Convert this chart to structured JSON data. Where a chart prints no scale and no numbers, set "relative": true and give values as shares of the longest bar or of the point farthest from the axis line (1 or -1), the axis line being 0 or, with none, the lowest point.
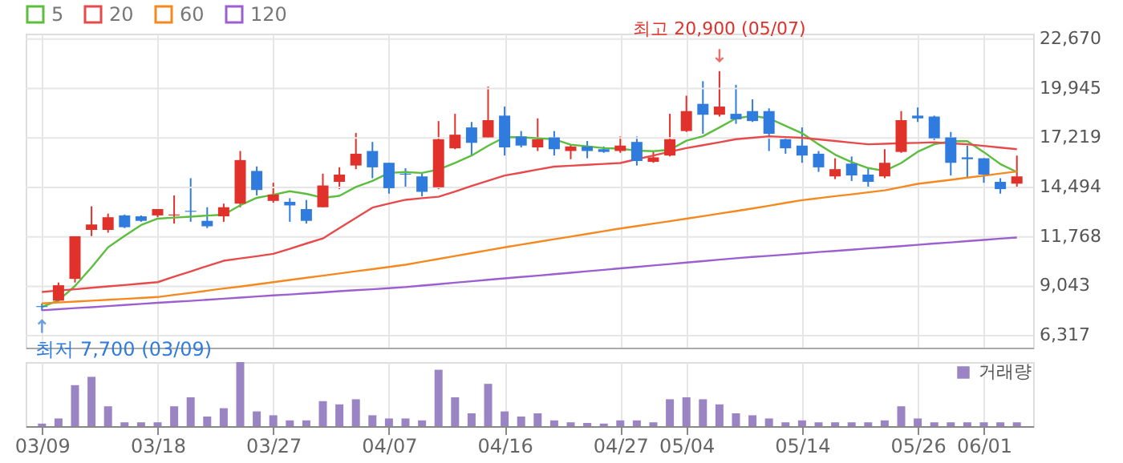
{
  "chart_data": [
    {
      "type": "candlestick",
      "categories": [
        "03/09",
        null,
        null,
        null,
        null,
        null,
        null,
        "03/18",
        null,
        null,
        null,
        null,
        null,
        null,
        "03/27",
        null,
        null,
        null,
        null,
        null,
        null,
        "04/07",
        null,
        null,
        null,
        null,
        null,
        null,
        "04/16",
        null,
        null,
        null,
        null,
        null,
        null,
        "04/27",
        null,
        null,
        null,
        "05/04",
        null,
        null,
        null,
        null,
        null,
        null,
        "05/14",
        null,
        null,
        null,
        null,
        null,
        null,
        "05/26",
        null,
        null,
        null,
        "06/01",
        null,
        null
      ],
      "ohlc": [
        [
          7950,
          8100,
          7700,
          7900
        ],
        [
          8250,
          9250,
          8200,
          9100
        ],
        [
          9450,
          11800,
          9250,
          11800
        ],
        [
          12150,
          13450,
          11750,
          12450
        ],
        [
          12150,
          13050,
          12000,
          12850
        ],
        [
          12950,
          13000,
          12250,
          12300
        ],
        [
          12900,
          12950,
          12600,
          12650
        ],
        [
          12950,
          13300,
          12850,
          13300
        ],
        [
          12950,
          14050,
          12500,
          13000
        ],
        [
          13200,
          15000,
          12600,
          13150
        ],
        [
          12650,
          13400,
          12250,
          12350
        ],
        [
          12900,
          13600,
          12600,
          13400
        ],
        [
          13600,
          16500,
          13400,
          16000
        ],
        [
          15400,
          15650,
          14050,
          14350
        ],
        [
          13750,
          14750,
          13650,
          14100
        ],
        [
          13700,
          13900,
          12600,
          13500
        ],
        [
          13300,
          13800,
          12500,
          12650
        ],
        [
          13400,
          15250,
          13400,
          14600
        ],
        [
          14800,
          15600,
          14400,
          15200
        ],
        [
          15700,
          17500,
          15500,
          16350
        ],
        [
          16500,
          17000,
          15000,
          15600
        ],
        [
          15850,
          15850,
          14150,
          14450
        ],
        [
          15250,
          15550,
          14450,
          15200
        ],
        [
          15100,
          15250,
          14000,
          14250
        ],
        [
          14500,
          18150,
          14400,
          17150
        ],
        [
          16650,
          18550,
          16600,
          17400
        ],
        [
          17800,
          18100,
          16250,
          16950
        ],
        [
          17250,
          20050,
          17200,
          18200
        ],
        [
          18450,
          18950,
          16250,
          16700
        ],
        [
          17300,
          17600,
          16700,
          16800
        ],
        [
          16700,
          18300,
          16500,
          17150
        ],
        [
          17250,
          17600,
          16250,
          16600
        ],
        [
          16500,
          16850,
          16050,
          16750
        ],
        [
          16750,
          17050,
          16100,
          16500
        ],
        [
          16600,
          16750,
          16400,
          16450
        ],
        [
          16500,
          17300,
          16400,
          16800
        ],
        [
          17000,
          17300,
          15700,
          15950
        ],
        [
          15900,
          16450,
          15850,
          16150
        ],
        [
          16250,
          18550,
          16200,
          17150
        ],
        [
          17600,
          19550,
          17550,
          18700
        ],
        [
          19100,
          20350,
          17450,
          18500
        ],
        [
          18500,
          20900,
          18400,
          18950
        ],
        [
          18550,
          20150,
          18000,
          18250
        ],
        [
          18700,
          19350,
          18100,
          18150
        ],
        [
          18700,
          18850,
          16500,
          17450
        ],
        [
          17150,
          17300,
          16350,
          16650
        ],
        [
          16800,
          17800,
          15850,
          16250
        ],
        [
          16350,
          16500,
          15350,
          15600
        ],
        [
          15100,
          16100,
          14950,
          15500
        ],
        [
          15800,
          16200,
          14850,
          15150
        ],
        [
          15200,
          15600,
          14500,
          14800
        ],
        [
          15100,
          16600,
          15000,
          15850
        ],
        [
          16450,
          18700,
          16400,
          18200
        ],
        [
          18450,
          18900,
          18100,
          18300
        ],
        [
          18400,
          18450,
          17100,
          17200
        ],
        [
          17250,
          17550,
          15150,
          15850
        ],
        [
          16150,
          16800,
          15000,
          16050
        ],
        [
          16100,
          16100,
          14750,
          15200
        ],
        [
          14800,
          15000,
          14150,
          14400
        ],
        [
          14700,
          16250,
          14500,
          15100
        ]
      ],
      "colors": [
        "#2f7bde",
        "#e0312b",
        "#e0312b",
        "#e0312b",
        "#e0312b",
        "#2f7bde",
        "#2f7bde",
        "#e0312b",
        "#e0312b",
        "#2f7bde",
        "#2f7bde",
        "#e0312b",
        "#e0312b",
        "#2f7bde",
        "#e0312b",
        "#2f7bde",
        "#2f7bde",
        "#e0312b",
        "#e0312b",
        "#e0312b",
        "#2f7bde",
        "#2f7bde",
        "#2f7bde",
        "#2f7bde",
        "#e0312b",
        "#e0312b",
        "#2f7bde",
        "#e0312b",
        "#2f7bde",
        "#2f7bde",
        "#e0312b",
        "#2f7bde",
        "#e0312b",
        "#2f7bde",
        "#2f7bde",
        "#e0312b",
        "#2f7bde",
        "#e0312b",
        "#e0312b",
        "#e0312b",
        "#2f7bde",
        "#e0312b",
        "#2f7bde",
        "#2f7bde",
        "#2f7bde",
        "#2f7bde",
        "#2f7bde",
        "#2f7bde",
        "#e0312b",
        "#2f7bde",
        "#2f7bde",
        "#e0312b",
        "#e0312b",
        "#2f7bde",
        "#2f7bde",
        "#2f7bde",
        "#2f7bde",
        "#2f7bde",
        "#2f7bde",
        "#e0312b"
      ],
      "series": [
        {
          "type": "line",
          "name": "5",
          "color": "#5dbd3f",
          "values": [
            7910,
            8260,
            9060,
            10090,
            11190,
            11820,
            12420,
            12770,
            12830,
            12880,
            12940,
            12990,
            13510,
            13920,
            14090,
            14280,
            14140,
            13920,
            14030,
            14520,
            14850,
            15290,
            15340,
            15290,
            15480,
            15840,
            16250,
            16790,
            17260,
            17260,
            17200,
            17150,
            16850,
            16760,
            16660,
            16630,
            16520,
            16490,
            16570,
            17070,
            17310,
            17800,
            18300,
            18430,
            18300,
            17890,
            17480,
            16870,
            16300,
            15890,
            15560,
            15400,
            15840,
            16460,
            16870,
            17040,
            17040,
            16440,
            15780,
            15340
          ]
        },
        {
          "type": "line",
          "name": "20",
          "color": "#e8494a",
          "values": [
            8730,
            8810,
            8880,
            8960,
            9040,
            9110,
            9190,
            9270,
            9570,
            9860,
            10160,
            10450,
            10580,
            10700,
            10830,
            11110,
            11400,
            11680,
            12250,
            12810,
            13380,
            13600,
            13810,
            13900,
            13980,
            14270,
            14570,
            14860,
            15150,
            15310,
            15480,
            15640,
            15690,
            15740,
            15790,
            15840,
            16050,
            16250,
            16460,
            16660,
            16820,
            16980,
            17150,
            17230,
            17310,
            17270,
            17230,
            17140,
            17050,
            16960,
            16870,
            16900,
            16930,
            16950,
            16980,
            16920,
            16870,
            16780,
            16690,
            16600
          ]
        },
        {
          "type": "line",
          "name": "60",
          "color": "#f5891f",
          "values": [
            8100,
            8150,
            8200,
            8250,
            8300,
            8350,
            8400,
            8450,
            8570,
            8680,
            8800,
            8920,
            9030,
            9150,
            9270,
            9390,
            9510,
            9630,
            9750,
            9870,
            9990,
            10110,
            10230,
            10390,
            10550,
            10710,
            10870,
            11030,
            11190,
            11340,
            11490,
            11640,
            11780,
            11930,
            12080,
            12230,
            12360,
            12500,
            12630,
            12770,
            12910,
            13050,
            13190,
            13330,
            13480,
            13640,
            13790,
            13900,
            14010,
            14110,
            14220,
            14330,
            14510,
            14690,
            14800,
            14910,
            15030,
            15140,
            15260,
            15370
          ]
        },
        {
          "type": "line",
          "name": "120",
          "color": "#9c5fcf",
          "values": [
            7720,
            7780,
            7840,
            7890,
            7950,
            8010,
            8070,
            8130,
            8190,
            8240,
            8300,
            8360,
            8420,
            8480,
            8540,
            8590,
            8650,
            8710,
            8770,
            8830,
            8880,
            8940,
            9000,
            9080,
            9160,
            9240,
            9320,
            9400,
            9480,
            9560,
            9630,
            9710,
            9790,
            9870,
            9950,
            10030,
            10110,
            10190,
            10270,
            10350,
            10430,
            10510,
            10590,
            10660,
            10720,
            10790,
            10860,
            10930,
            10990,
            11060,
            11130,
            11190,
            11260,
            11330,
            11400,
            11460,
            11530,
            11600,
            11670,
            11730
          ]
        }
      ],
      "ylim": [
        5660,
        22970
      ],
      "yticks": [
        {
          "value": 6317,
          "label": "6,317"
        },
        {
          "value": 9043,
          "label": "9,043"
        },
        {
          "value": 11768,
          "label": "11,768"
        },
        {
          "value": 14494,
          "label": "14,494"
        },
        {
          "value": 17219,
          "label": "17,219"
        },
        {
          "value": 19945,
          "label": "19,945"
        },
        {
          "value": 22670,
          "label": "22,670"
        }
      ],
      "annotations": [
        {
          "text": "최고 20,900 (05/07)",
          "y": 20900
        },
        {
          "text": "최저 7,700 (03/09)",
          "x": "03/09",
          "y": 7700
        }
      ],
      "grid": true,
      "legend": "top left",
      "tick_labels": "y"
    },
    {
      "type": "bar",
      "relative": true,
      "categories": [
        "03/09",
        null,
        null,
        null,
        null,
        null,
        null,
        "03/18",
        null,
        null,
        null,
        null,
        null,
        null,
        "03/27",
        null,
        null,
        null,
        null,
        null,
        null,
        "04/07",
        null,
        null,
        null,
        null,
        null,
        null,
        "04/16",
        null,
        null,
        null,
        null,
        null,
        null,
        "04/27",
        null,
        null,
        null,
        "05/04",
        null,
        null,
        null,
        null,
        null,
        null,
        "05/14",
        null,
        null,
        null,
        null,
        null,
        null,
        "05/26",
        null,
        null,
        null,
        "06/01",
        null,
        null
      ],
      "series": [
        {
          "name": "거래량",
          "color": "#9b84c4",
          "values": [
            0.04,
            0.12,
            0.64,
            0.77,
            0.31,
            0.06,
            0.06,
            0.06,
            0.31,
            0.45,
            0.15,
            0.28,
            1,
            0.23,
            0.17,
            0.09,
            0.09,
            0.39,
            0.34,
            0.42,
            0.17,
            0.12,
            0.12,
            0.09,
            0.88,
            0.45,
            0.2,
            0.66,
            0.23,
            0.15,
            0.2,
            0.09,
            0.06,
            0.05,
            0.04,
            0.09,
            0.09,
            0.06,
            0.42,
            0.45,
            0.42,
            0.34,
            0.2,
            0.17,
            0.12,
            0.06,
            0.09,
            0.06,
            0.06,
            0.06,
            0.06,
            0.09,
            0.31,
            0.12,
            0.06,
            0.06,
            0.06,
            0.06,
            0.06,
            0.06
          ]
        }
      ],
      "grid": "x",
      "legend": "top right",
      "tick_labels": "x"
    }
  ]
}
